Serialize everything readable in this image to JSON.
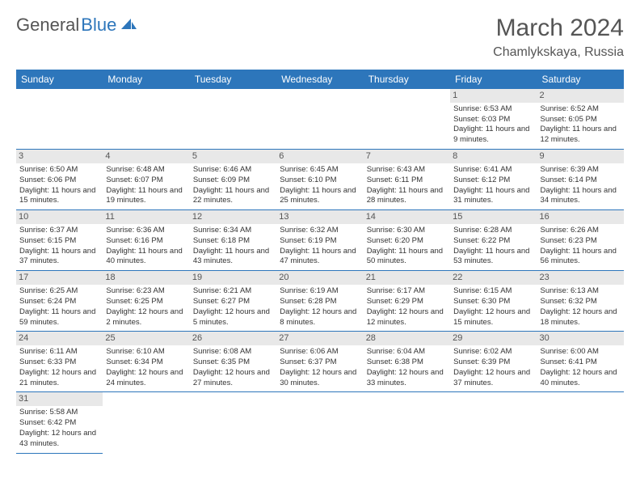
{
  "brand": {
    "part1": "General",
    "part2": "Blue",
    "logo_color": "#2d76bb"
  },
  "title": "March 2024",
  "location": "Chamlykskaya, Russia",
  "header_bg": "#2d76bb",
  "header_fg": "#ffffff",
  "daynum_bg": "#e8e8e8",
  "border_color": "#2d76bb",
  "weekdays": [
    "Sunday",
    "Monday",
    "Tuesday",
    "Wednesday",
    "Thursday",
    "Friday",
    "Saturday"
  ],
  "weeks": [
    [
      null,
      null,
      null,
      null,
      null,
      {
        "n": "1",
        "sr": "Sunrise: 6:53 AM",
        "ss": "Sunset: 6:03 PM",
        "dl": "Daylight: 11 hours and 9 minutes."
      },
      {
        "n": "2",
        "sr": "Sunrise: 6:52 AM",
        "ss": "Sunset: 6:05 PM",
        "dl": "Daylight: 11 hours and 12 minutes."
      }
    ],
    [
      {
        "n": "3",
        "sr": "Sunrise: 6:50 AM",
        "ss": "Sunset: 6:06 PM",
        "dl": "Daylight: 11 hours and 15 minutes."
      },
      {
        "n": "4",
        "sr": "Sunrise: 6:48 AM",
        "ss": "Sunset: 6:07 PM",
        "dl": "Daylight: 11 hours and 19 minutes."
      },
      {
        "n": "5",
        "sr": "Sunrise: 6:46 AM",
        "ss": "Sunset: 6:09 PM",
        "dl": "Daylight: 11 hours and 22 minutes."
      },
      {
        "n": "6",
        "sr": "Sunrise: 6:45 AM",
        "ss": "Sunset: 6:10 PM",
        "dl": "Daylight: 11 hours and 25 minutes."
      },
      {
        "n": "7",
        "sr": "Sunrise: 6:43 AM",
        "ss": "Sunset: 6:11 PM",
        "dl": "Daylight: 11 hours and 28 minutes."
      },
      {
        "n": "8",
        "sr": "Sunrise: 6:41 AM",
        "ss": "Sunset: 6:12 PM",
        "dl": "Daylight: 11 hours and 31 minutes."
      },
      {
        "n": "9",
        "sr": "Sunrise: 6:39 AM",
        "ss": "Sunset: 6:14 PM",
        "dl": "Daylight: 11 hours and 34 minutes."
      }
    ],
    [
      {
        "n": "10",
        "sr": "Sunrise: 6:37 AM",
        "ss": "Sunset: 6:15 PM",
        "dl": "Daylight: 11 hours and 37 minutes."
      },
      {
        "n": "11",
        "sr": "Sunrise: 6:36 AM",
        "ss": "Sunset: 6:16 PM",
        "dl": "Daylight: 11 hours and 40 minutes."
      },
      {
        "n": "12",
        "sr": "Sunrise: 6:34 AM",
        "ss": "Sunset: 6:18 PM",
        "dl": "Daylight: 11 hours and 43 minutes."
      },
      {
        "n": "13",
        "sr": "Sunrise: 6:32 AM",
        "ss": "Sunset: 6:19 PM",
        "dl": "Daylight: 11 hours and 47 minutes."
      },
      {
        "n": "14",
        "sr": "Sunrise: 6:30 AM",
        "ss": "Sunset: 6:20 PM",
        "dl": "Daylight: 11 hours and 50 minutes."
      },
      {
        "n": "15",
        "sr": "Sunrise: 6:28 AM",
        "ss": "Sunset: 6:22 PM",
        "dl": "Daylight: 11 hours and 53 minutes."
      },
      {
        "n": "16",
        "sr": "Sunrise: 6:26 AM",
        "ss": "Sunset: 6:23 PM",
        "dl": "Daylight: 11 hours and 56 minutes."
      }
    ],
    [
      {
        "n": "17",
        "sr": "Sunrise: 6:25 AM",
        "ss": "Sunset: 6:24 PM",
        "dl": "Daylight: 11 hours and 59 minutes."
      },
      {
        "n": "18",
        "sr": "Sunrise: 6:23 AM",
        "ss": "Sunset: 6:25 PM",
        "dl": "Daylight: 12 hours and 2 minutes."
      },
      {
        "n": "19",
        "sr": "Sunrise: 6:21 AM",
        "ss": "Sunset: 6:27 PM",
        "dl": "Daylight: 12 hours and 5 minutes."
      },
      {
        "n": "20",
        "sr": "Sunrise: 6:19 AM",
        "ss": "Sunset: 6:28 PM",
        "dl": "Daylight: 12 hours and 8 minutes."
      },
      {
        "n": "21",
        "sr": "Sunrise: 6:17 AM",
        "ss": "Sunset: 6:29 PM",
        "dl": "Daylight: 12 hours and 12 minutes."
      },
      {
        "n": "22",
        "sr": "Sunrise: 6:15 AM",
        "ss": "Sunset: 6:30 PM",
        "dl": "Daylight: 12 hours and 15 minutes."
      },
      {
        "n": "23",
        "sr": "Sunrise: 6:13 AM",
        "ss": "Sunset: 6:32 PM",
        "dl": "Daylight: 12 hours and 18 minutes."
      }
    ],
    [
      {
        "n": "24",
        "sr": "Sunrise: 6:11 AM",
        "ss": "Sunset: 6:33 PM",
        "dl": "Daylight: 12 hours and 21 minutes."
      },
      {
        "n": "25",
        "sr": "Sunrise: 6:10 AM",
        "ss": "Sunset: 6:34 PM",
        "dl": "Daylight: 12 hours and 24 minutes."
      },
      {
        "n": "26",
        "sr": "Sunrise: 6:08 AM",
        "ss": "Sunset: 6:35 PM",
        "dl": "Daylight: 12 hours and 27 minutes."
      },
      {
        "n": "27",
        "sr": "Sunrise: 6:06 AM",
        "ss": "Sunset: 6:37 PM",
        "dl": "Daylight: 12 hours and 30 minutes."
      },
      {
        "n": "28",
        "sr": "Sunrise: 6:04 AM",
        "ss": "Sunset: 6:38 PM",
        "dl": "Daylight: 12 hours and 33 minutes."
      },
      {
        "n": "29",
        "sr": "Sunrise: 6:02 AM",
        "ss": "Sunset: 6:39 PM",
        "dl": "Daylight: 12 hours and 37 minutes."
      },
      {
        "n": "30",
        "sr": "Sunrise: 6:00 AM",
        "ss": "Sunset: 6:41 PM",
        "dl": "Daylight: 12 hours and 40 minutes."
      }
    ],
    [
      {
        "n": "31",
        "sr": "Sunrise: 5:58 AM",
        "ss": "Sunset: 6:42 PM",
        "dl": "Daylight: 12 hours and 43 minutes."
      },
      null,
      null,
      null,
      null,
      null,
      null
    ]
  ]
}
